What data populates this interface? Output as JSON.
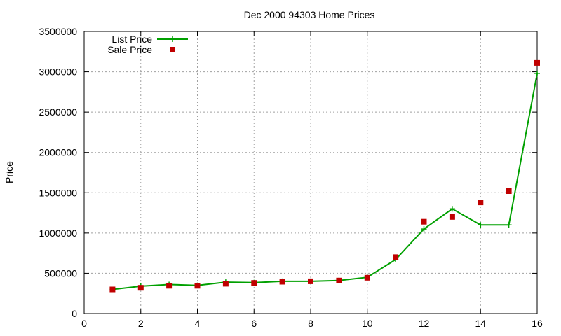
{
  "chart_data": {
    "type": "line",
    "title": "Dec 2000 94303 Home Prices",
    "xlabel": "",
    "ylabel": "Price",
    "xlim": [
      0,
      16
    ],
    "ylim": [
      0,
      3500000
    ],
    "xticks": [
      "0",
      "2",
      "4",
      "6",
      "8",
      "10",
      "12",
      "14",
      "16"
    ],
    "yticks": [
      "0",
      "500000",
      "1000000",
      "1500000",
      "2000000",
      "2500000",
      "3000000",
      "3500000"
    ],
    "grid": true,
    "legend_position": "top-left",
    "series": [
      {
        "name": "List Price",
        "style": "line-plus",
        "color": "#00a000",
        "x": [
          1,
          2,
          3,
          4,
          5,
          6,
          7,
          8,
          9,
          10,
          11,
          12,
          13,
          14,
          15,
          16
        ],
        "y": [
          300000,
          340000,
          360000,
          350000,
          390000,
          385000,
          400000,
          400000,
          410000,
          450000,
          670000,
          1050000,
          1300000,
          1100000,
          1100000,
          2980000
        ]
      },
      {
        "name": "Sale Price",
        "style": "square",
        "color": "#c00000",
        "x": [
          1,
          2,
          3,
          4,
          5,
          6,
          7,
          8,
          9,
          10,
          11,
          12,
          13,
          14,
          15,
          16
        ],
        "y": [
          300000,
          320000,
          345000,
          345000,
          370000,
          380000,
          395000,
          400000,
          410000,
          445000,
          700000,
          1140000,
          1200000,
          1380000,
          1520000,
          3110000
        ]
      }
    ]
  }
}
